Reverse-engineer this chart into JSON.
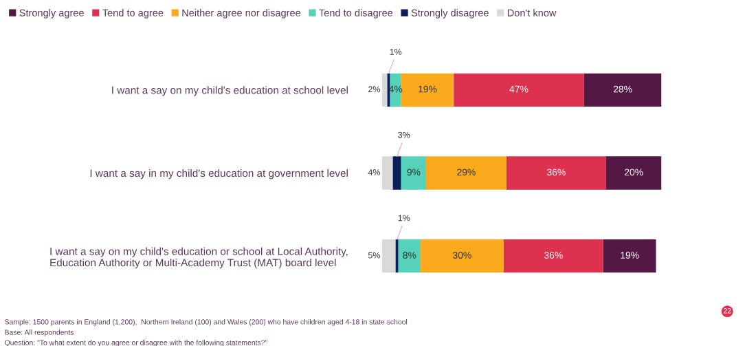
{
  "chart_data": {
    "type": "bar",
    "orientation": "horizontal",
    "stacked": true,
    "tick_labels": "y",
    "legend": "top",
    "grid": false,
    "categories": [
      "I want a say on my child's education at school level",
      "I want a say in my child's education at government level",
      "I want a say on my child's education or school at Local Authority,\nEducation Authority or Multi-Academy Trust (MAT) board level"
    ],
    "series": [
      {
        "name": "Don't know",
        "color": "#d9d9d9",
        "values": [
          2,
          4,
          5
        ],
        "value_labels": [
          "2%",
          "4%",
          "5%"
        ]
      },
      {
        "name": "Strongly disagree",
        "color": "#0a1e5a",
        "values": [
          1,
          3,
          1
        ],
        "value_labels": [
          "1%",
          "3%",
          "1%"
        ]
      },
      {
        "name": "Tend to disagree",
        "color": "#55d2b9",
        "values": [
          4,
          9,
          8
        ],
        "value_labels": [
          "4%",
          "9%",
          "8%"
        ]
      },
      {
        "name": "Neither agree nor disagree",
        "color": "#fbaa1e",
        "values": [
          19,
          29,
          30
        ],
        "value_labels": [
          "19%",
          "29%",
          "30%"
        ]
      },
      {
        "name": "Tend to agree",
        "color": "#dc3250",
        "values": [
          47,
          36,
          36
        ],
        "value_labels": [
          "47%",
          "36%",
          "36%"
        ]
      },
      {
        "name": "Strongly agree",
        "color": "#541845",
        "values": [
          28,
          20,
          19
        ],
        "value_labels": [
          "28%",
          "20%",
          "19%"
        ]
      }
    ],
    "annotations": [
      "Sample: 1500 parents in England (1,200),  Northern Ireland (100) and Wales (200) who have children aged 4-18 in state school",
      "Base: All respondents",
      "Question: \"To what extent do you agree or disagree with the following statements?\"",
      "22"
    ]
  }
}
